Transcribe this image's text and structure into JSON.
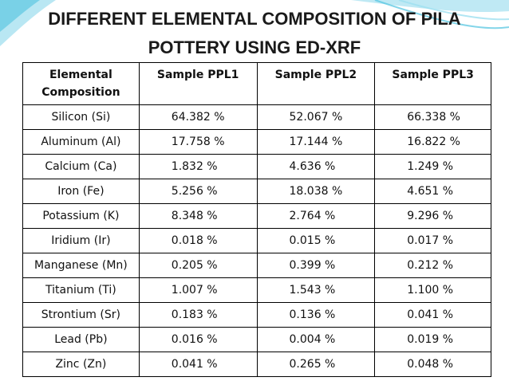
{
  "title_line1": "DIFFERENT ELEMENTAL COMPOSITION OF PILA",
  "title_line2": "POTTERY USING ED-XRF",
  "accent_color": "#4fc3e0",
  "table": {
    "headers": [
      "Elemental Composition",
      "Sample PPL1",
      "Sample PPL2",
      "Sample PPL3"
    ],
    "rows": [
      [
        "Silicon (Si)",
        "64.382 %",
        "52.067 %",
        "66.338 %"
      ],
      [
        "Aluminum (Al)",
        "17.758 %",
        "17.144 %",
        "16.822 %"
      ],
      [
        "Calcium (Ca)",
        "1.832 %",
        "4.636 %",
        "1.249 %"
      ],
      [
        "Iron (Fe)",
        "5.256 %",
        "18.038 %",
        "4.651 %"
      ],
      [
        "Potassium (K)",
        "8.348 %",
        "2.764 %",
        "9.296 %"
      ],
      [
        "Iridium (Ir)",
        "0.018 %",
        "0.015 %",
        "0.017 %"
      ],
      [
        "Manganese (Mn)",
        "0.205 %",
        "0.399 %",
        "0.212 %"
      ],
      [
        "Titanium (Ti)",
        "1.007 %",
        "1.543 %",
        "1.100 %"
      ],
      [
        "Strontium (Sr)",
        "0.183 %",
        "0.136 %",
        "0.041 %"
      ],
      [
        "Lead (Pb)",
        "0.016 %",
        "0.004 %",
        "0.019 %"
      ],
      [
        "Zinc (Zn)",
        "0.041 %",
        "0.265 %",
        "0.048 %"
      ]
    ]
  }
}
